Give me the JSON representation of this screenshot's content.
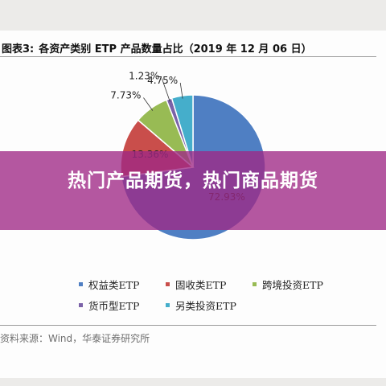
{
  "figure": {
    "label": "图表3:",
    "title": "各资产类别 ETP 产品数量占比（2019 年 12 月 06 日）"
  },
  "chart_data": {
    "type": "pie",
    "categories": [
      "权益类ETP",
      "固收类ETP",
      "跨境投资ETP",
      "货币型ETP",
      "另类投资ETP"
    ],
    "values": [
      72.93,
      13.36,
      7.73,
      1.23,
      4.75
    ],
    "data_labels": [
      "72.93%",
      "13.36%",
      "7.73%",
      "1.23%",
      "4.75%"
    ],
    "colors": [
      "#4f7fc3",
      "#c94e4b",
      "#98bb54",
      "#7b62a8",
      "#45aecb"
    ],
    "legend_placement": "bottom"
  },
  "source": "资料来源：Wind，华泰证券研究所",
  "banner": {
    "text": "热门产品期货，热门商品期货",
    "color": "#9f2885"
  }
}
